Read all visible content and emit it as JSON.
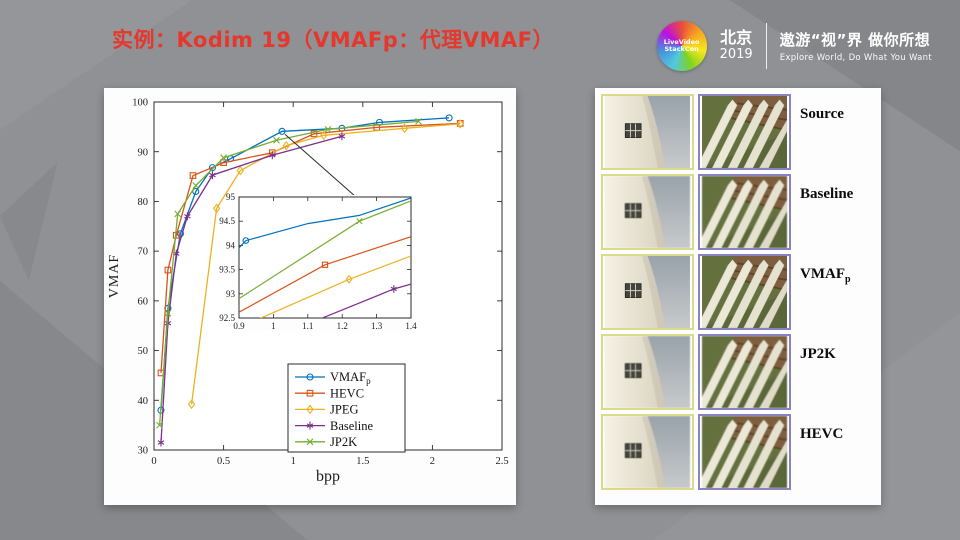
{
  "slide": {
    "title": "实例：Kodim 19（VMAFp：代理VMAF）",
    "header": {
      "logo_text": "LiveVideoStackCon",
      "city": "北京",
      "year": "2019",
      "slogan_cn": "遨游“视”界 做你所想",
      "slogan_en": "Explore World, Do What You Want"
    }
  },
  "chart_data": {
    "type": "line",
    "title": "",
    "xlabel": "bpp",
    "ylabel": "VMAF",
    "xlim": [
      0,
      2.5
    ],
    "ylim": [
      30,
      100
    ],
    "xticks": [
      0,
      0.5,
      1,
      1.5,
      2,
      2.5
    ],
    "yticks": [
      30,
      40,
      50,
      60,
      70,
      80,
      90,
      100
    ],
    "grid": false,
    "legend_position": "bottom-right",
    "series": [
      {
        "name": "VMAFp",
        "label": "VMAF",
        "label_sub": "p",
        "color": "#0072BD",
        "marker": "circle",
        "points": [
          [
            0.05,
            38
          ],
          [
            0.1,
            58.5
          ],
          [
            0.19,
            73.5
          ],
          [
            0.3,
            82
          ],
          [
            0.42,
            86.8
          ],
          [
            0.55,
            88.6
          ],
          [
            0.92,
            94.1
          ],
          [
            1.35,
            94.7
          ],
          [
            1.62,
            95.9
          ],
          [
            2.12,
            96.8
          ]
        ]
      },
      {
        "name": "HEVC",
        "label": "HEVC",
        "label_sub": "",
        "color": "#D95319",
        "marker": "square",
        "points": [
          [
            0.05,
            45.5
          ],
          [
            0.1,
            66.2
          ],
          [
            0.16,
            73.2
          ],
          [
            0.28,
            85.2
          ],
          [
            0.5,
            87.8
          ],
          [
            0.85,
            89.8
          ],
          [
            1.15,
            93.6
          ],
          [
            1.6,
            94.9
          ],
          [
            2.2,
            95.7
          ]
        ]
      },
      {
        "name": "JPEG",
        "label": "JPEG",
        "label_sub": "",
        "color": "#EDB120",
        "marker": "diamond",
        "points": [
          [
            0.27,
            39.2
          ],
          [
            0.45,
            78.6
          ],
          [
            0.62,
            86.2
          ],
          [
            0.95,
            91.2
          ],
          [
            1.22,
            93.3
          ],
          [
            1.8,
            94.7
          ],
          [
            2.2,
            95.6
          ]
        ]
      },
      {
        "name": "Baseline",
        "label": "Baseline",
        "label_sub": "",
        "color": "#7E2F8E",
        "marker": "asterisk",
        "points": [
          [
            0.05,
            31.5
          ],
          [
            0.1,
            55.5
          ],
          [
            0.16,
            69.5
          ],
          [
            0.24,
            77
          ],
          [
            0.42,
            85.3
          ],
          [
            0.85,
            89.3
          ],
          [
            1.35,
            93.1
          ]
        ]
      },
      {
        "name": "JP2K",
        "label": "JP2K",
        "label_sub": "",
        "color": "#77AC30",
        "marker": "x",
        "points": [
          [
            0.04,
            35
          ],
          [
            0.1,
            57.5
          ],
          [
            0.17,
            77.5
          ],
          [
            0.3,
            83.2
          ],
          [
            0.5,
            88.8
          ],
          [
            0.88,
            92.3
          ],
          [
            1.25,
            94.5
          ],
          [
            1.9,
            96.1
          ]
        ]
      }
    ],
    "inset": {
      "xlim": [
        0.9,
        1.4
      ],
      "ylim": [
        92.5,
        95
      ],
      "xticks": [
        0.9,
        1,
        1.1,
        1.2,
        1.3,
        1.4
      ],
      "yticks": [
        92.5,
        93,
        93.5,
        94,
        94.5,
        95
      ],
      "callout_from": [
        0.92,
        94.1
      ],
      "series": [
        {
          "name": "VMAFp",
          "points": [
            [
              0.9,
              93.95
            ],
            [
              0.92,
              94.1
            ],
            [
              1.1,
              94.45
            ],
            [
              1.25,
              94.62
            ],
            [
              1.4,
              94.98
            ]
          ],
          "markers": [
            [
              0.92,
              94.1
            ]
          ]
        },
        {
          "name": "HEVC",
          "points": [
            [
              0.9,
              92.62
            ],
            [
              1.15,
              93.6
            ],
            [
              1.4,
              94.18
            ]
          ],
          "markers": [
            [
              1.15,
              93.6
            ]
          ]
        },
        {
          "name": "JPEG",
          "points": [
            [
              0.9,
              92.3
            ],
            [
              1.22,
              93.3
            ],
            [
              1.4,
              93.78
            ]
          ],
          "markers": [
            [
              1.22,
              93.3
            ]
          ]
        },
        {
          "name": "Baseline",
          "points": [
            [
              0.9,
              91.8
            ],
            [
              1.35,
              93.1
            ],
            [
              1.4,
              93.2
            ]
          ],
          "markers": [
            [
              1.35,
              93.1
            ]
          ]
        },
        {
          "name": "JP2K",
          "points": [
            [
              0.9,
              92.9
            ],
            [
              1.25,
              94.5
            ],
            [
              1.4,
              94.92
            ]
          ],
          "markers": [
            [
              1.25,
              94.5
            ]
          ]
        }
      ]
    }
  },
  "comparison": {
    "rows": [
      {
        "label": "Source",
        "sub": ""
      },
      {
        "label": "Baseline",
        "sub": ""
      },
      {
        "label": "VMAF",
        "sub": "p"
      },
      {
        "label": "JP2K",
        "sub": ""
      },
      {
        "label": "HEVC",
        "sub": ""
      }
    ]
  }
}
